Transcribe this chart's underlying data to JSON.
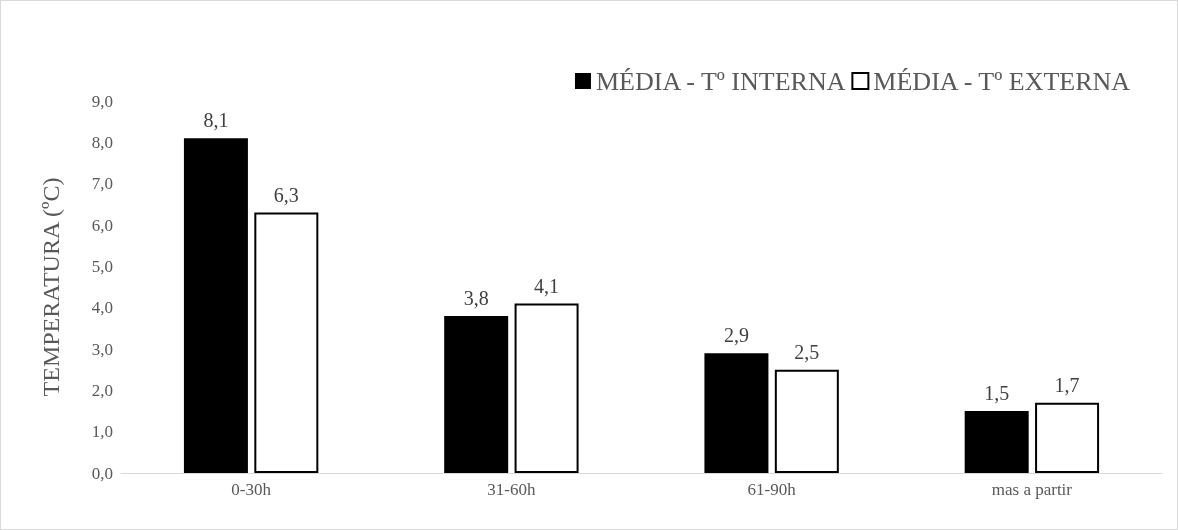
{
  "chart_data": {
    "type": "bar",
    "ylabel": "TEMPERATURA (ºC)",
    "categories": [
      "0-30h",
      "31-60h",
      "61-90h",
      "mas a partir"
    ],
    "series": [
      {
        "name": "MÉDIA - Tº INTERNA",
        "color": "#000000",
        "values": [
          8.1,
          3.8,
          2.9,
          1.5
        ],
        "value_labels": [
          "8,1",
          "3,8",
          "2,9",
          "1,5"
        ]
      },
      {
        "name": "MÉDIA - Tº EXTERNA",
        "color": "#ffffff",
        "values": [
          6.3,
          4.1,
          2.5,
          1.7
        ],
        "value_labels": [
          "6,3",
          "4,1",
          "2,5",
          "1,7"
        ]
      }
    ],
    "ylim": [
      0,
      9
    ],
    "yticks": [
      {
        "value": 0,
        "label": "0,0"
      },
      {
        "value": 1,
        "label": "1,0"
      },
      {
        "value": 2,
        "label": "2,0"
      },
      {
        "value": 3,
        "label": "3,0"
      },
      {
        "value": 4,
        "label": "4,0"
      },
      {
        "value": 5,
        "label": "5,0"
      },
      {
        "value": 6,
        "label": "6,0"
      },
      {
        "value": 7,
        "label": "7,0"
      },
      {
        "value": 8,
        "label": "8,0"
      },
      {
        "value": 9,
        "label": "9,0"
      }
    ],
    "grid": false,
    "legend": "top right"
  }
}
